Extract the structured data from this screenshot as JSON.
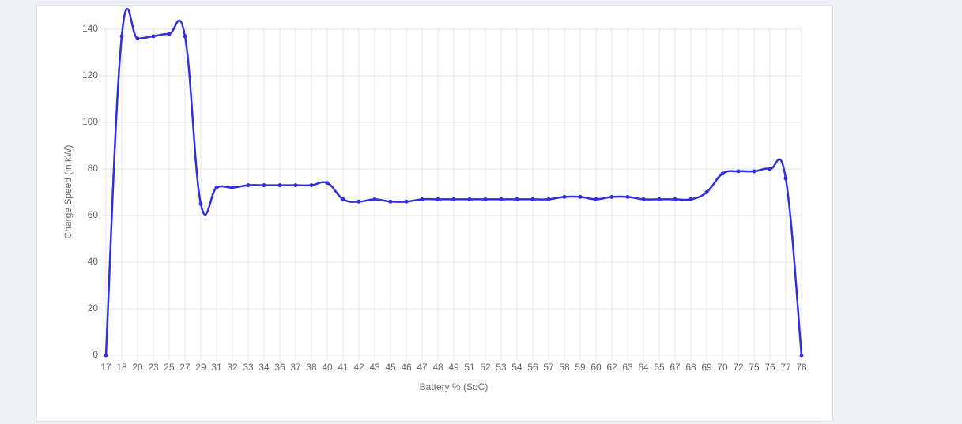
{
  "chart_data": {
    "type": "line",
    "x_label": "Battery % (SoC)",
    "y_label": "Charge Speed (in kW)",
    "categories": [
      "17",
      "18",
      "20",
      "23",
      "25",
      "27",
      "29",
      "31",
      "32",
      "33",
      "34",
      "36",
      "37",
      "38",
      "40",
      "41",
      "42",
      "43",
      "45",
      "46",
      "47",
      "48",
      "49",
      "51",
      "52",
      "53",
      "54",
      "56",
      "57",
      "58",
      "59",
      "60",
      "62",
      "63",
      "64",
      "65",
      "67",
      "68",
      "69",
      "70",
      "72",
      "75",
      "76",
      "77",
      "78"
    ],
    "series": [
      {
        "color": "#2f2fe0",
        "values": [
          0,
          137,
          136,
          137,
          138,
          137,
          65,
          72,
          72,
          73,
          73,
          73,
          73,
          73,
          74,
          67,
          66,
          67,
          66,
          66,
          67,
          67,
          67,
          67,
          67,
          67,
          67,
          67,
          67,
          68,
          68,
          67,
          68,
          68,
          67,
          67,
          67,
          67,
          70,
          78,
          79,
          79,
          80,
          76,
          0
        ]
      }
    ],
    "ylim": [
      0,
      140
    ],
    "yticks": [
      0,
      20,
      40,
      60,
      80,
      100,
      120,
      140
    ],
    "grid": true
  }
}
